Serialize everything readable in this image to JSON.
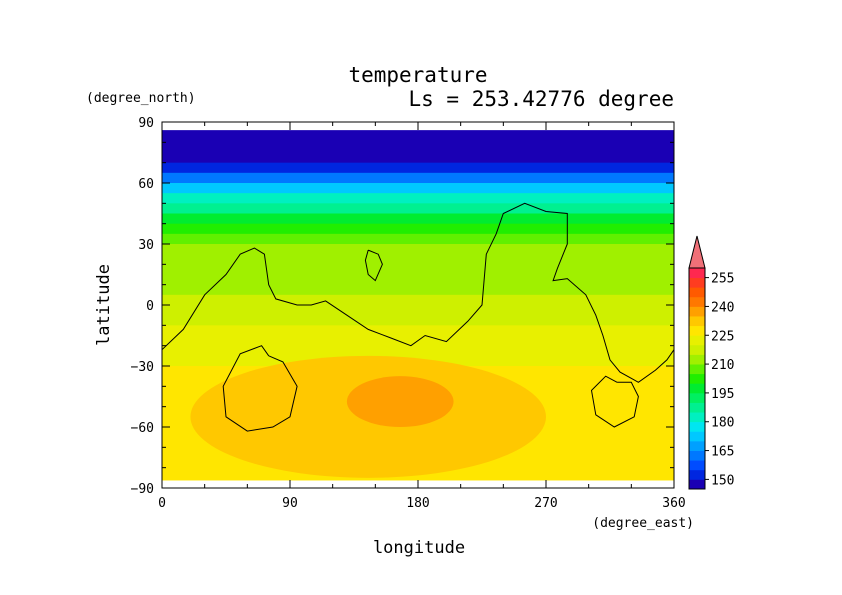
{
  "chart_data": {
    "type": "heatmap",
    "title": "temperature",
    "subtitle": "Ls = 253.42776 degree",
    "xlabel": "longitude",
    "ylabel": "latitude",
    "x_unit": "(degree_east)",
    "y_unit": "(degree_north)",
    "xlim": [
      0,
      360
    ],
    "ylim": [
      -90,
      90
    ],
    "x_ticks": [
      "0",
      "90",
      "180",
      "270",
      "360"
    ],
    "y_ticks": [
      "90",
      "60",
      "30",
      "0",
      "−30",
      "−60",
      "−90"
    ],
    "x_tick_values": [
      0,
      90,
      180,
      270,
      360
    ],
    "y_tick_values": [
      90,
      60,
      30,
      0,
      -30,
      -60,
      -90
    ],
    "colorbar": {
      "levels": [
        145,
        150,
        155,
        160,
        165,
        170,
        175,
        180,
        185,
        190,
        195,
        200,
        205,
        210,
        215,
        220,
        225,
        230,
        235,
        240,
        245,
        250,
        255,
        260
      ],
      "colors": [
        "#1a00b4",
        "#0026e0",
        "#004cff",
        "#0078ff",
        "#00a0ff",
        "#00c8ff",
        "#00e6f0",
        "#00f0c0",
        "#00f090",
        "#00f060",
        "#00ec30",
        "#20ee00",
        "#60f000",
        "#a0f000",
        "#cef000",
        "#e8f000",
        "#ffe600",
        "#ffc800",
        "#ffa000",
        "#ff7800",
        "#ff5a00",
        "#ff3c20",
        "#ff2850",
        "#f07078"
      ],
      "labels": [
        "150",
        "165",
        "180",
        "195",
        "210",
        "225",
        "240",
        "255"
      ],
      "label_values": [
        150,
        165,
        180,
        195,
        210,
        225,
        240,
        255
      ],
      "extend": "max"
    },
    "data_extent": {
      "lon": [
        0,
        360
      ],
      "lat": [
        -86,
        86
      ]
    },
    "zonal_profile": [
      {
        "lat": 86,
        "value": 146
      },
      {
        "lat": 70,
        "value": 150
      },
      {
        "lat": 65,
        "value": 160
      },
      {
        "lat": 60,
        "value": 170
      },
      {
        "lat": 55,
        "value": 180
      },
      {
        "lat": 50,
        "value": 188
      },
      {
        "lat": 45,
        "value": 195
      },
      {
        "lat": 40,
        "value": 200
      },
      {
        "lat": 35,
        "value": 205
      },
      {
        "lat": 30,
        "value": 210
      },
      {
        "lat": 20,
        "value": 214
      },
      {
        "lat": 5,
        "value": 217
      },
      {
        "lat": -10,
        "value": 220
      },
      {
        "lat": -20,
        "value": 224
      },
      {
        "lat": -30,
        "value": 226
      },
      {
        "lat": -45,
        "value": 226
      },
      {
        "lat": -60,
        "value": 225
      },
      {
        "lat": -75,
        "value": 228
      },
      {
        "lat": -86,
        "value": 229
      }
    ],
    "warm_regions": [
      {
        "value": 230,
        "lon": [
          20,
          270
        ],
        "lat": [
          -85,
          -25
        ]
      },
      {
        "value": 235,
        "lon": [
          130,
          205
        ],
        "lat": [
          -60,
          -35
        ]
      }
    ],
    "contours": [
      [
        [
          0,
          -22
        ],
        [
          15,
          -12
        ],
        [
          30,
          5
        ],
        [
          45,
          15
        ],
        [
          55,
          25
        ],
        [
          65,
          28
        ],
        [
          72,
          25
        ],
        [
          75,
          10
        ],
        [
          80,
          3
        ],
        [
          95,
          0
        ],
        [
          105,
          0
        ],
        [
          115,
          2
        ],
        [
          130,
          -5
        ],
        [
          145,
          -12
        ],
        [
          160,
          -16
        ],
        [
          175,
          -20
        ],
        [
          185,
          -15
        ],
        [
          200,
          -18
        ],
        [
          215,
          -8
        ],
        [
          225,
          0
        ],
        [
          228,
          25
        ],
        [
          235,
          35
        ],
        [
          240,
          45
        ],
        [
          255,
          50
        ],
        [
          270,
          46
        ],
        [
          285,
          45
        ],
        [
          285,
          30
        ],
        [
          278,
          18
        ],
        [
          275,
          12
        ],
        [
          285,
          13
        ],
        [
          298,
          5
        ],
        [
          305,
          -5
        ],
        [
          310,
          -15
        ],
        [
          315,
          -27
        ],
        [
          322,
          -33
        ],
        [
          335,
          -38
        ],
        [
          347,
          -32
        ],
        [
          355,
          -27
        ],
        [
          360,
          -22
        ]
      ],
      [
        [
          145,
          27
        ],
        [
          152,
          25
        ],
        [
          155,
          20
        ],
        [
          150,
          12
        ],
        [
          145,
          15
        ],
        [
          143,
          22
        ],
        [
          145,
          27
        ]
      ],
      [
        [
          75,
          -25
        ],
        [
          70,
          -20
        ],
        [
          55,
          -24
        ],
        [
          43,
          -40
        ],
        [
          45,
          -55
        ],
        [
          60,
          -62
        ],
        [
          78,
          -60
        ],
        [
          90,
          -55
        ],
        [
          95,
          -40
        ],
        [
          85,
          -28
        ],
        [
          75,
          -25
        ]
      ],
      [
        [
          320,
          -38
        ],
        [
          312,
          -35
        ],
        [
          302,
          -42
        ],
        [
          305,
          -54
        ],
        [
          318,
          -60
        ],
        [
          332,
          -55
        ],
        [
          335,
          -45
        ],
        [
          330,
          -38
        ],
        [
          320,
          -38
        ]
      ]
    ]
  }
}
